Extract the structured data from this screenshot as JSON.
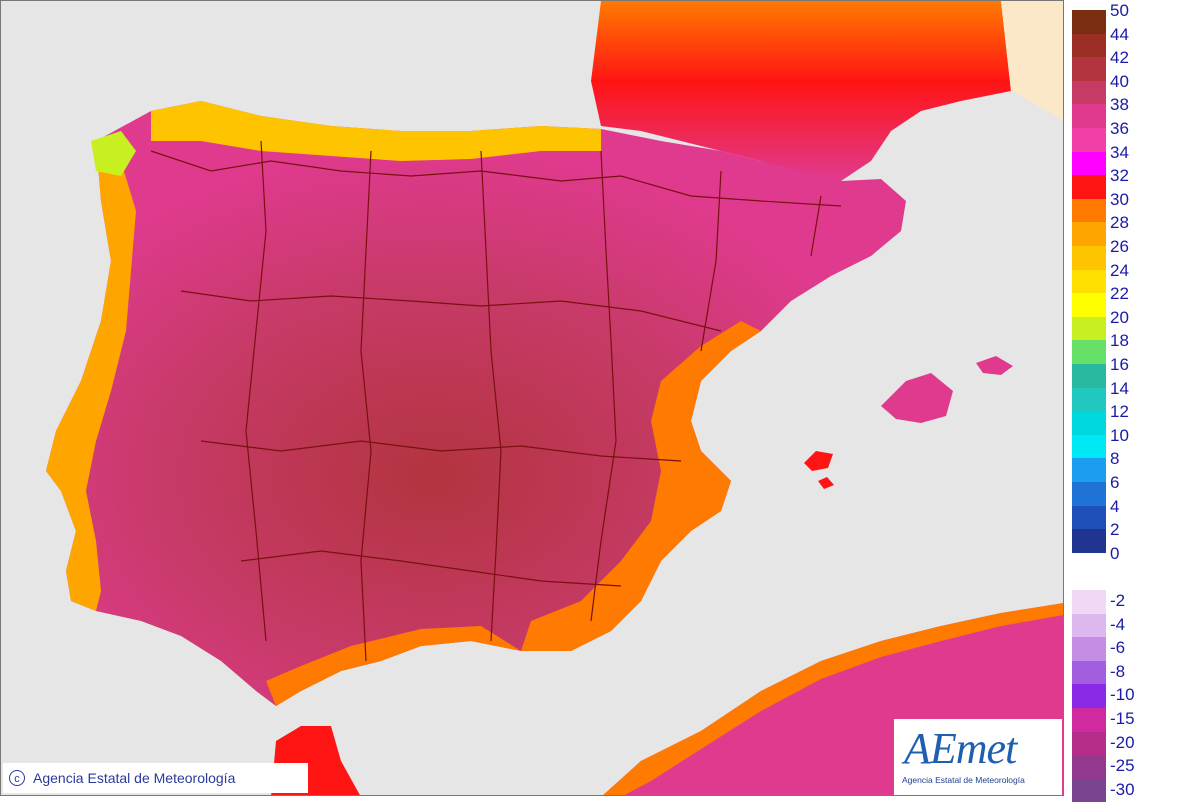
{
  "map": {
    "title": "",
    "copyright_text": "Agencia Estatal de Meteorología",
    "copyright_symbol": "c",
    "logo": {
      "mark": "AEmet",
      "subtitle": "Agencia Estatal de Meteorología"
    },
    "colors": {
      "sea": "#e6e6e6",
      "france_outer": "#fbe8c8",
      "boundary": "#7a1010"
    }
  },
  "legend": {
    "positive": [
      {
        "label": "50",
        "color": "#7b2d0f"
      },
      {
        "label": "44",
        "color": "#9b2f25"
      },
      {
        "label": "42",
        "color": "#b3343f"
      },
      {
        "label": "40",
        "color": "#c63a66"
      },
      {
        "label": "38",
        "color": "#e03a8f"
      },
      {
        "label": "36",
        "color": "#f23fa8"
      },
      {
        "label": "34",
        "color": "#ff00ff"
      },
      {
        "label": "32",
        "color": "#ff1414"
      },
      {
        "label": "30",
        "color": "#ff7a00"
      },
      {
        "label": "28",
        "color": "#ffa500"
      },
      {
        "label": "26",
        "color": "#ffc400"
      },
      {
        "label": "24",
        "color": "#ffe000"
      },
      {
        "label": "22",
        "color": "#ffff00"
      },
      {
        "label": "20",
        "color": "#c8f020"
      },
      {
        "label": "18",
        "color": "#66e066"
      },
      {
        "label": "16",
        "color": "#29b8a0"
      },
      {
        "label": "14",
        "color": "#20c8c0"
      },
      {
        "label": "12",
        "color": "#00d8e0"
      },
      {
        "label": "10",
        "color": "#00e8f5"
      },
      {
        "label": "8",
        "color": "#1c9ef0"
      },
      {
        "label": "6",
        "color": "#1f72d6"
      },
      {
        "label": "4",
        "color": "#1f4fb8"
      },
      {
        "label": "2",
        "color": "#1f3590"
      },
      {
        "label": "0",
        "color": "#15156a"
      }
    ],
    "negative": [
      {
        "label": "-2",
        "color": "#efd9f3"
      },
      {
        "label": "-4",
        "color": "#dcb8ef"
      },
      {
        "label": "-6",
        "color": "#c58ee6"
      },
      {
        "label": "-8",
        "color": "#a35ee0"
      },
      {
        "label": "-10",
        "color": "#8a2ae8"
      },
      {
        "label": "-15",
        "color": "#cf2a9e"
      },
      {
        "label": "-20",
        "color": "#b52d8a"
      },
      {
        "label": "-25",
        "color": "#943a8e"
      },
      {
        "label": "-30",
        "color": "#7a4590"
      }
    ]
  }
}
